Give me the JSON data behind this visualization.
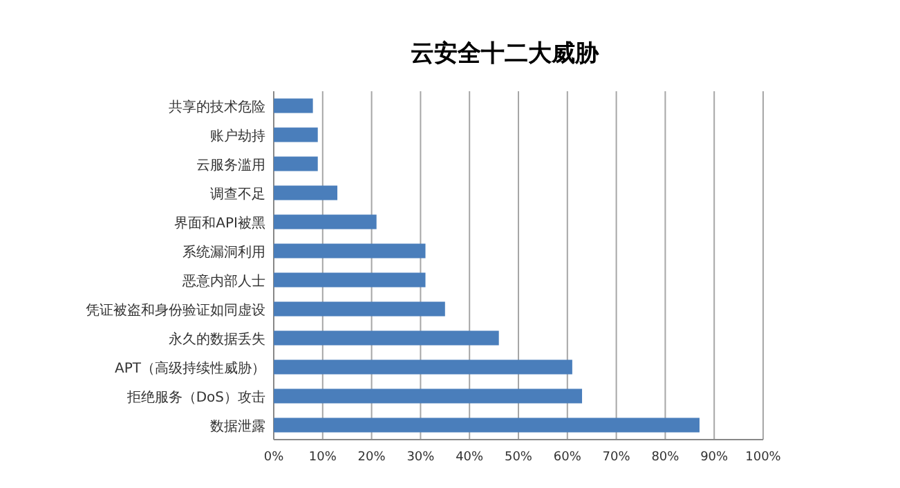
{
  "chart_data": {
    "type": "bar",
    "orientation": "horizontal",
    "title": "云安全十二大威胁",
    "categories": [
      "共享的技术危险",
      "账户劫持",
      "云服务滥用",
      "调查不足",
      "界面和API被黑",
      "系统漏洞利用",
      "恶意内部人士",
      "凭证被盗和身份验证如同虚设",
      "永久的数据丢失",
      "APT（高级持续性威胁）",
      "拒绝服务（DoS）攻击",
      "数据泄露"
    ],
    "values": [
      8,
      9,
      9,
      13,
      21,
      31,
      31,
      35,
      46,
      61,
      63,
      87
    ],
    "color": "#4a7ebb",
    "xlim": [
      0,
      100
    ],
    "xticks": [
      {
        "value": 0,
        "label": "0%"
      },
      {
        "value": 10,
        "label": "10%"
      },
      {
        "value": 20,
        "label": "20%"
      },
      {
        "value": 30,
        "label": "30%"
      },
      {
        "value": 40,
        "label": "40%"
      },
      {
        "value": 50,
        "label": "50%"
      },
      {
        "value": 60,
        "label": "60%"
      },
      {
        "value": 70,
        "label": "70%"
      },
      {
        "value": 80,
        "label": "80%"
      },
      {
        "value": 90,
        "label": "90%"
      },
      {
        "value": 100,
        "label": "100%"
      }
    ],
    "grid": "x"
  }
}
